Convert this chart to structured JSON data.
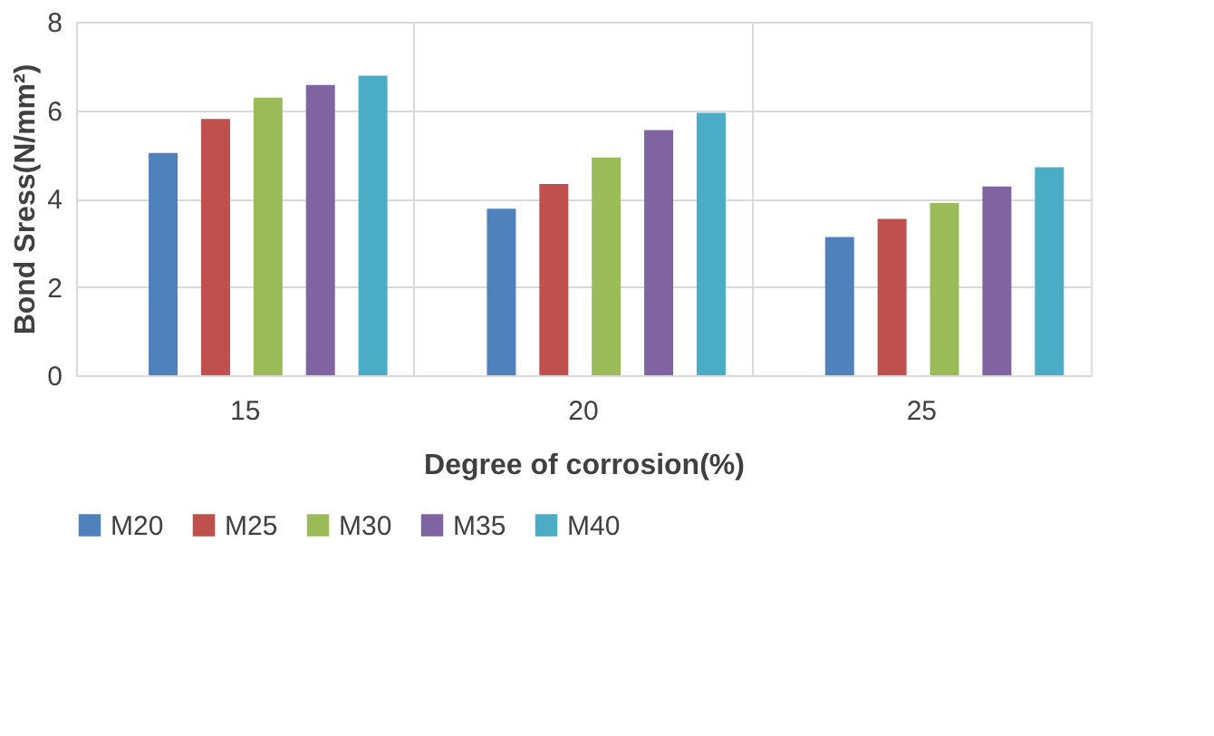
{
  "chart_data": {
    "type": "bar",
    "xlabel": "Degree of corrosion(%)",
    "ylabel": "Bond Sress(N/mm²)",
    "categories": [
      "15",
      "20",
      "25"
    ],
    "series": [
      {
        "name": "M20",
        "color": "#4f81bd",
        "values": [
          5.03,
          3.77,
          3.13
        ]
      },
      {
        "name": "M25",
        "color": "#c0504d",
        "values": [
          5.8,
          4.33,
          3.54
        ]
      },
      {
        "name": "M30",
        "color": "#9bbb59",
        "values": [
          6.28,
          4.93,
          3.9
        ]
      },
      {
        "name": "M35",
        "color": "#8064a2",
        "values": [
          6.57,
          5.55,
          4.27
        ]
      },
      {
        "name": "M40",
        "color": "#4bacc6",
        "values": [
          6.78,
          5.94,
          4.71
        ]
      }
    ],
    "ylim": [
      0,
      8
    ],
    "yticks": [
      0,
      2,
      4,
      6,
      8
    ],
    "grid": true,
    "legend": "bottom"
  }
}
